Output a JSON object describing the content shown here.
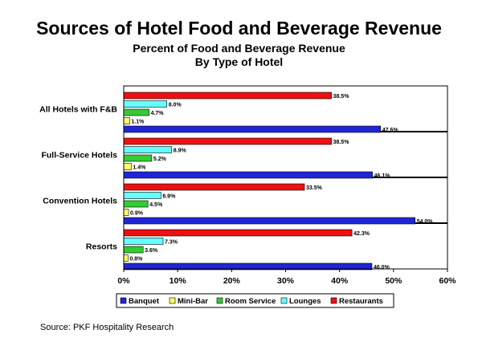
{
  "title": "Sources of Hotel Food and Beverage Revenue",
  "subtitle_1": "Percent of Food and Beverage Revenue",
  "subtitle_2": "By Type of Hotel",
  "source": "Source: PKF Hospitality Research",
  "colors": {
    "Banquet": "#1f26d6",
    "Mini-Bar": "#ffff66",
    "Room Service": "#33cc33",
    "Lounges": "#66ffff",
    "Restaurants": "#ee1111"
  },
  "chart_data": {
    "type": "bar",
    "orientation": "horizontal",
    "categories": [
      "All Hotels with F&B",
      "Full-Service Hotels",
      "Convention Hotels",
      "Resorts"
    ],
    "series": [
      {
        "name": "Restaurants",
        "values": [
          38.5,
          38.5,
          33.5,
          42.3
        ],
        "labels": [
          "38.5%",
          "38.5%",
          "33.5%",
          "42.3%"
        ]
      },
      {
        "name": "Lounges",
        "values": [
          8.0,
          8.9,
          6.9,
          7.3
        ],
        "labels": [
          "8.0%",
          "8.9%",
          "6.9%",
          "7.3%"
        ]
      },
      {
        "name": "Room Service",
        "values": [
          4.7,
          5.2,
          4.5,
          3.6
        ],
        "labels": [
          "4.7%",
          "5.2%",
          "4.5%",
          "3.6%"
        ]
      },
      {
        "name": "Mini-Bar",
        "values": [
          1.1,
          1.4,
          0.9,
          0.8
        ],
        "labels": [
          "1.1%",
          "1.4%",
          "0.9%",
          "0.8%"
        ]
      },
      {
        "name": "Banquet",
        "values": [
          47.6,
          46.1,
          54.0,
          46.0
        ],
        "labels": [
          "47.6%",
          "46.1%",
          "54.0%",
          "46.0%"
        ]
      }
    ],
    "legend_order": [
      "Banquet",
      "Mini-Bar",
      "Room Service",
      "Lounges",
      "Restaurants"
    ],
    "xlim": [
      0,
      60
    ],
    "xticks": [
      "0%",
      "10%",
      "20%",
      "30%",
      "40%",
      "50%",
      "60%"
    ],
    "legend": "bottom",
    "grid": false
  }
}
